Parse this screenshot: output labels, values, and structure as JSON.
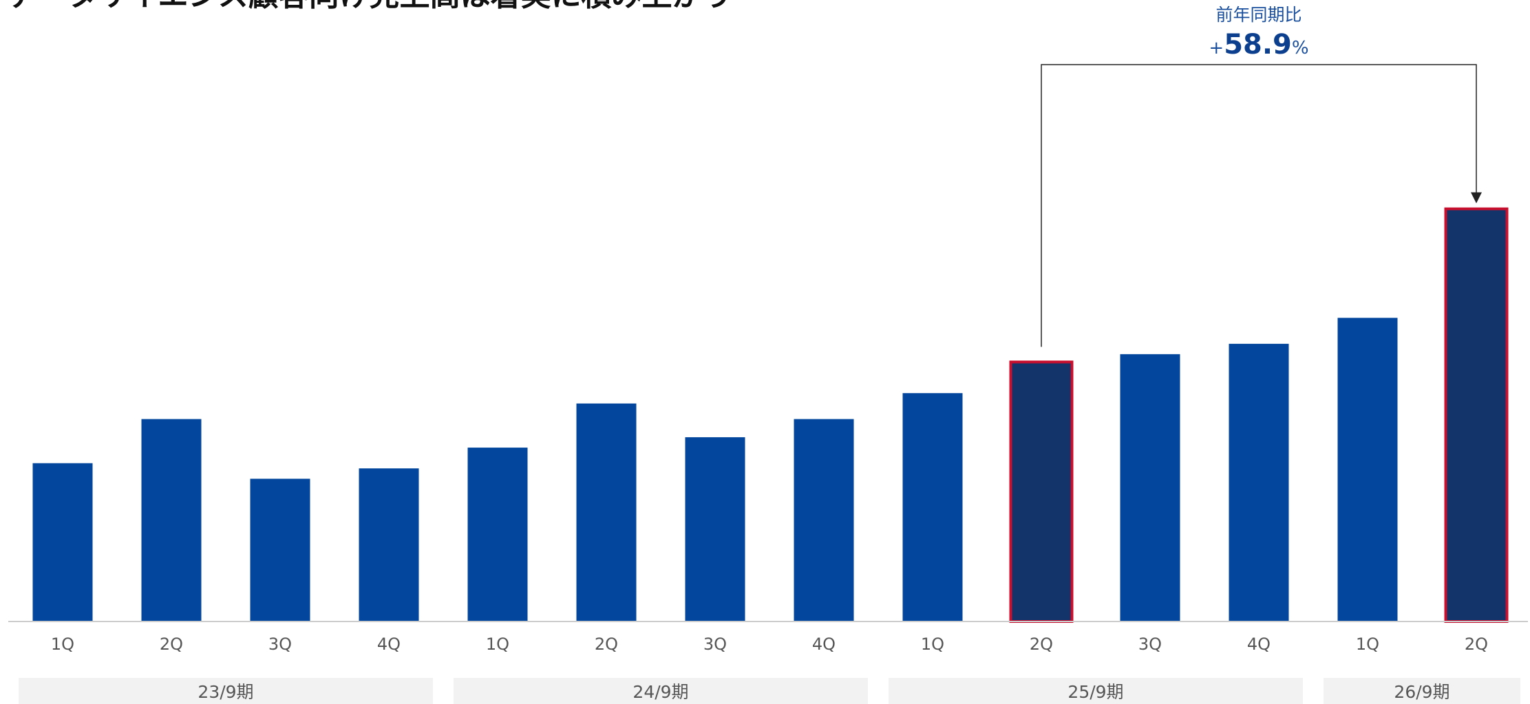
{
  "title": "データサイエンス顧客向け売上高は着実に積み上がり",
  "colors": {
    "bar": "#02479d",
    "highlight_bar": "#13336b",
    "highlight_border": "#c8102e",
    "axis": "#cccccc",
    "period_band": "#f2f2f2",
    "annotation_line": "#222222",
    "annotation_text": "#1a4f9e"
  },
  "chart_data": {
    "type": "bar",
    "title": "データサイエンス顧客向け売上高は着実に積み上がり",
    "xlabel": "",
    "ylabel": "",
    "categories": [
      "1Q",
      "2Q",
      "3Q",
      "4Q",
      "1Q",
      "2Q",
      "3Q",
      "4Q",
      "1Q",
      "2Q",
      "3Q",
      "4Q",
      "1Q",
      "2Q"
    ],
    "periods": [
      {
        "label": "23/9期",
        "quarters": 4
      },
      {
        "label": "24/9期",
        "quarters": 4
      },
      {
        "label": "25/9期",
        "quarters": 4
      },
      {
        "label": "26/9期",
        "quarters": 2
      }
    ],
    "values": [
      30.5,
      39.0,
      27.5,
      29.5,
      33.5,
      42.0,
      35.5,
      39.0,
      44.0,
      50.0,
      51.5,
      53.5,
      58.5,
      79.5
    ],
    "ylim": [
      0,
      100
    ],
    "y_axis_shown": false,
    "grid": false,
    "highlighted_indices": [
      9,
      13
    ],
    "annotation": {
      "from_index": 9,
      "to_index": 13,
      "caption": "前年同期比",
      "prefix": "+",
      "value": "58.9",
      "suffix": "%"
    }
  }
}
